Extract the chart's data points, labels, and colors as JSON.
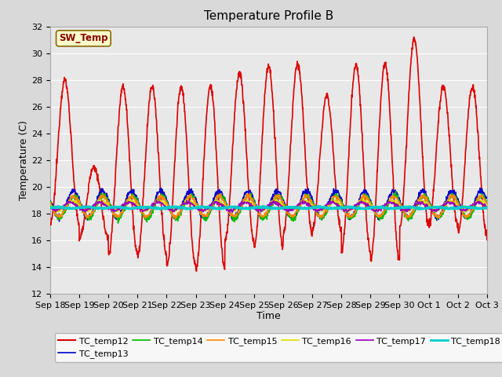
{
  "title": "Temperature Profile B",
  "xlabel": "Time",
  "ylabel": "Temperature (C)",
  "ylim": [
    12,
    32
  ],
  "yticks": [
    12,
    14,
    16,
    18,
    20,
    22,
    24,
    26,
    28,
    30,
    32
  ],
  "x_labels": [
    "Sep 18",
    "Sep 19",
    "Sep 20",
    "Sep 21",
    "Sep 22",
    "Sep 23",
    "Sep 24",
    "Sep 25",
    "Sep 26",
    "Sep 27",
    "Sep 28",
    "Sep 29",
    "Sep 30",
    "Oct 1",
    "Oct 2",
    "Oct 3"
  ],
  "fig_bg": "#d9d9d9",
  "plot_bg": "#e8e8e8",
  "grid_color": "#ffffff",
  "series": {
    "TC_temp12": {
      "color": "#dd0000",
      "linewidth": 1.2
    },
    "TC_temp13": {
      "color": "#0000cc",
      "linewidth": 1.1
    },
    "TC_temp14": {
      "color": "#00bb00",
      "linewidth": 1.1
    },
    "TC_temp15": {
      "color": "#ff8800",
      "linewidth": 1.1
    },
    "TC_temp16": {
      "color": "#dddd00",
      "linewidth": 1.1
    },
    "TC_temp17": {
      "color": "#9900bb",
      "linewidth": 1.1
    },
    "TC_temp18": {
      "color": "#00cccc",
      "linewidth": 2.0
    }
  },
  "sw_temp_box_facecolor": "#ffffcc",
  "sw_temp_box_edgecolor": "#886600",
  "sw_temp_text_color": "#880000",
  "legend_fontsize": 8,
  "title_fontsize": 11,
  "axis_fontsize": 9,
  "tick_fontsize": 8
}
